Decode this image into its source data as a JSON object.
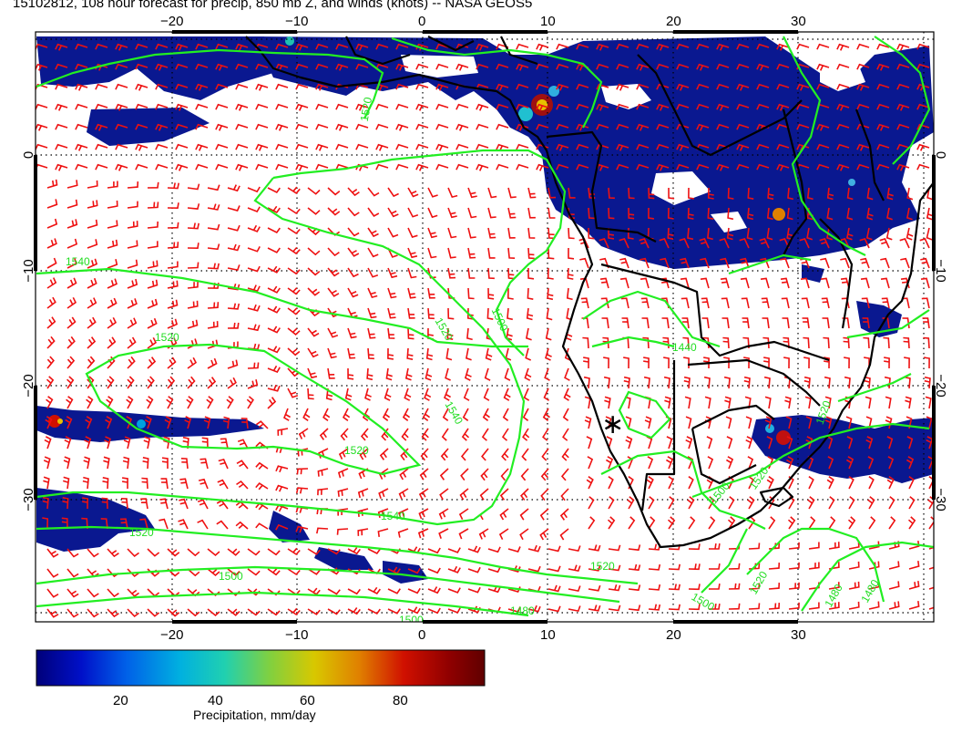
{
  "title": "15102812, 108 hour forecast for precip, 850 mb Z, and winds (knots) -- NASA GEOS5",
  "map": {
    "lon_ticks": [
      "−20",
      "−10",
      "0",
      "10",
      "20",
      "30"
    ],
    "lat_ticks": [
      "0",
      "−10",
      "−20",
      "−30"
    ],
    "contour_labels": [
      "1540",
      "1520",
      "1520",
      "1520",
      "1500",
      "1540",
      "1520",
      "1540",
      "1500",
      "1520",
      "1480",
      "1500",
      "1520",
      "1500",
      "1520",
      "1500",
      "1520",
      "1480",
      "1520",
      "1480",
      "1440"
    ],
    "marker_symbol": "∗",
    "colors": {
      "contour": "#22ee22",
      "wind_barb": "#ee1111",
      "precip_low": "#0a1890",
      "coast": "#000000"
    }
  },
  "colorbar": {
    "ticks": [
      "20",
      "40",
      "60",
      "80"
    ],
    "label": "Precipitation, mm/day",
    "gradient": [
      "#00007a",
      "#0010c8",
      "#0060e8",
      "#00b0e0",
      "#20d0b0",
      "#80d040",
      "#d8c800",
      "#e08000",
      "#d01000",
      "#900000",
      "#600000"
    ]
  }
}
